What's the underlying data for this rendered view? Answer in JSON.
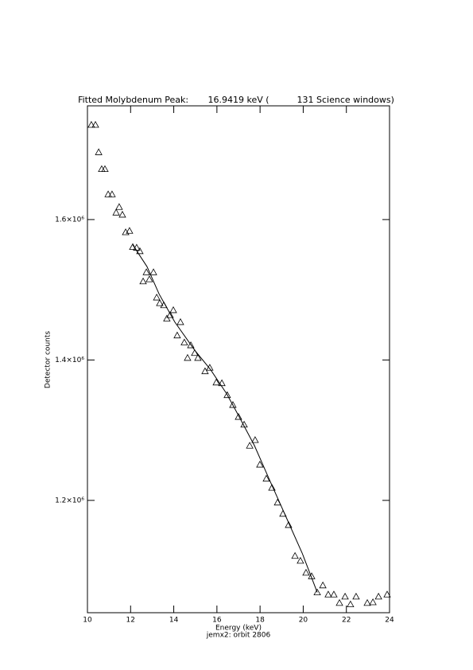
{
  "chart_data": {
    "type": "scatter",
    "title": "Fitted Molybdenum Peak:       16.9419 keV (          131 Science windows)",
    "x_label": "Energy (keV)",
    "y_label": "Detector counts",
    "footer": "jemx2: orbit 2806",
    "xlim": [
      10,
      24
    ],
    "xticks": [
      10,
      12,
      14,
      16,
      18,
      20,
      22,
      24
    ],
    "ylim": [
      1040000,
      1762000
    ],
    "yticks": [
      {
        "value": 1200000,
        "label": "1.2×10⁶"
      },
      {
        "value": 1400000,
        "label": "1.4×10⁶"
      },
      {
        "value": 1600000,
        "label": "1.6×10⁶"
      }
    ],
    "series": [
      {
        "type": "scatter",
        "marker": "triangle",
        "color": "#000000",
        "x": [
          10.18,
          10.37,
          10.52,
          10.66,
          10.81,
          10.96,
          11.14,
          11.33,
          11.47,
          11.62,
          11.77,
          11.95,
          12.1,
          12.28,
          12.43,
          12.58,
          12.73,
          12.87,
          13.06,
          13.21,
          13.35,
          13.54,
          13.68,
          13.83,
          13.98,
          14.16,
          14.31,
          14.49,
          14.64,
          14.79,
          14.97,
          15.12,
          15.45,
          15.67,
          15.97,
          16.23,
          16.48,
          16.74,
          17.0,
          17.26,
          17.52,
          17.77,
          17.99,
          18.29,
          18.55,
          18.81,
          19.06,
          19.32,
          19.62,
          19.87,
          20.13,
          20.39,
          20.65,
          20.91,
          21.16,
          21.42,
          21.68,
          21.94,
          22.19,
          22.45,
          22.97,
          23.23,
          23.49,
          23.89
        ],
        "values": [
          1735000,
          1735000,
          1696000,
          1672000,
          1672000,
          1636000,
          1636000,
          1610000,
          1618000,
          1607000,
          1582000,
          1584000,
          1561000,
          1560000,
          1555000,
          1512000,
          1525000,
          1515000,
          1525000,
          1489000,
          1481000,
          1478000,
          1459000,
          1464000,
          1471000,
          1435000,
          1454000,
          1425000,
          1403000,
          1421000,
          1410000,
          1403000,
          1384000,
          1389000,
          1368000,
          1367000,
          1350000,
          1336000,
          1319000,
          1308000,
          1278000,
          1286000,
          1251000,
          1231000,
          1218000,
          1197000,
          1181000,
          1165000,
          1121000,
          1114000,
          1097000,
          1092000,
          1069000,
          1079000,
          1066000,
          1066000,
          1054000,
          1063000,
          1052000,
          1063000,
          1054000,
          1055000,
          1063000,
          1066000
        ]
      },
      {
        "type": "line",
        "color": "#000000",
        "x": [
          12.1,
          12.76,
          13.32,
          14.05,
          14.97,
          15.71,
          16.45,
          17.0,
          17.74,
          18.47,
          19.21,
          19.95,
          20.65
        ],
        "values": [
          1564000,
          1533000,
          1494000,
          1454000,
          1414000,
          1386000,
          1352000,
          1321000,
          1278000,
          1227000,
          1176000,
          1125000,
          1069000
        ]
      }
    ]
  }
}
